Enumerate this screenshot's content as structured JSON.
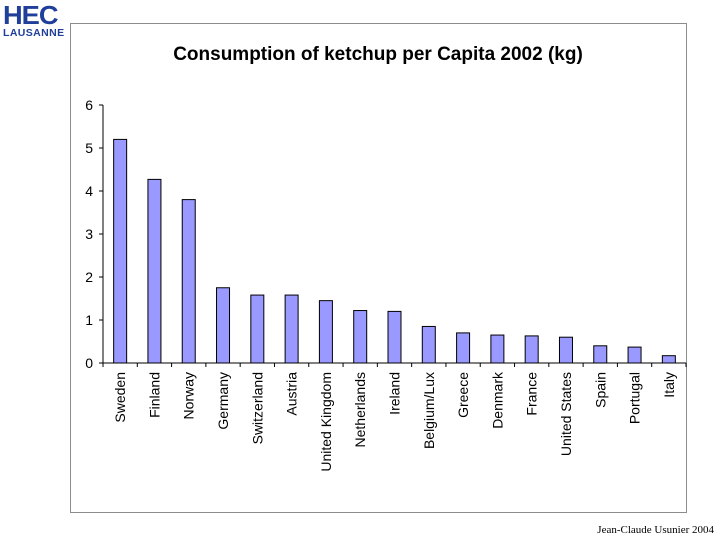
{
  "logo": {
    "main_text": "HEC",
    "sub_text": "LAUSANNE",
    "color": "#1f3f9a"
  },
  "footer": {
    "credit": "Jean-Claude Usunier 2004"
  },
  "chart_data": {
    "type": "bar",
    "title": "Consumption of ketchup per Capita 2002 (kg)",
    "xlabel": "",
    "ylabel": "",
    "ylim": [
      0,
      6
    ],
    "yticks": [
      0,
      1,
      2,
      3,
      4,
      5,
      6
    ],
    "grid": false,
    "legend": "none",
    "bar_color": "#9999ff",
    "bar_edge_color": "#000000",
    "categories": [
      "Sweden",
      "Finland",
      "Norway",
      "Germany",
      "Switzerland",
      "Austria",
      "United Kingdom",
      "Netherlands",
      "Ireland",
      "Belgium/Lux",
      "Greece",
      "Denmark",
      "France",
      "United States",
      "Spain",
      "Portugal",
      "Italy"
    ],
    "values": [
      5.2,
      4.27,
      3.8,
      1.75,
      1.58,
      1.58,
      1.45,
      1.22,
      1.2,
      0.85,
      0.7,
      0.65,
      0.63,
      0.6,
      0.4,
      0.37,
      0.17
    ]
  }
}
